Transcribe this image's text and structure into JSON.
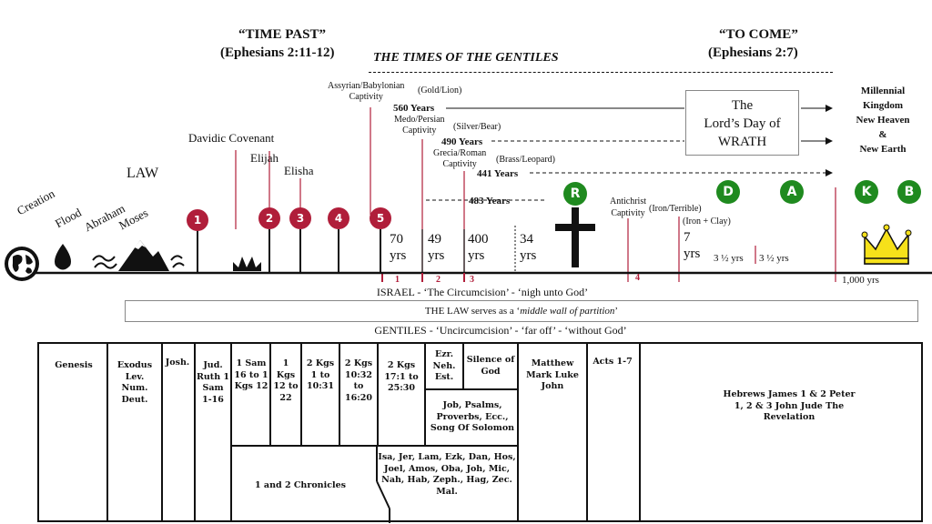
{
  "top": {
    "time_past": "“TIME PAST”",
    "time_past_ref": "(Ephesians 2:11-12)",
    "to_come": "“TO COME”",
    "to_come_ref": "(Ephesians 2:7)",
    "gentiles_times": "THE TIMES OF THE GENTILES"
  },
  "kingdom": [
    "Millennial",
    "Kingdom",
    "New Heaven",
    "&",
    "New Earth"
  ],
  "wrath": [
    "The",
    "Lord’s Day of",
    "WRATH"
  ],
  "captivities": {
    "assyrian": [
      "Assyrian/Babylonian",
      "Captivity"
    ],
    "gold": "(Gold/Lion)",
    "y560": "560 Years",
    "medo": [
      "Medo/Persian",
      "Captivity"
    ],
    "silver": "(Silver/Bear)",
    "y490": "490 Years",
    "grecia": [
      "Grecia/Roman",
      "Captivity"
    ],
    "brass": "(Brass/Leopard)",
    "y441": "441 Years",
    "y483": "483 Years",
    "antichrist": [
      "Antichrist",
      "Captivity"
    ],
    "iron": "(Iron/Terrible)",
    "iron_clay": "(Iron + Clay)"
  },
  "events": {
    "davidic": "Davidic Covenant",
    "elijah": "Elijah",
    "elisha": "Elisha",
    "law": "LAW",
    "creation": "Creation",
    "flood": "Flood",
    "abraham": "Abraham",
    "moses": "Moses"
  },
  "red_markers": [
    "1",
    "2",
    "3",
    "4",
    "5"
  ],
  "green_markers": [
    "R",
    "D",
    "A",
    "K",
    "B"
  ],
  "spans": {
    "s70": [
      "70",
      "yrs"
    ],
    "s49": [
      "49",
      "yrs"
    ],
    "s400": [
      "400",
      "yrs"
    ],
    "s34": [
      "34",
      "yrs"
    ],
    "s7": [
      "7",
      "yrs"
    ],
    "half1": "3 ½ yrs",
    "half2": "3 ½  yrs",
    "millennium": "1,000 yrs"
  },
  "axis_marks": [
    "1",
    "2",
    "3",
    "4"
  ],
  "bands": {
    "israel": "ISRAEL  -  ‘The Circumcision’  -  ‘nigh unto God’",
    "law_pre": "THE LAW serves as a ‘",
    "law_it": "middle wall of partition",
    "law_post": "’",
    "gentiles": "GENTILES  -  ‘Uncircumcision’  -  ‘far off’  -  ‘without God’"
  },
  "books": {
    "genesis": "Genesis",
    "exodus": "Exodus Lev. Num. Deut.",
    "josh": "Josh.",
    "jud": "Jud. Ruth 1 Sam 1-16",
    "sam": "1 Sam 16 to 1 Kgs 12",
    "kgs1": "1 Kgs 12 to 22",
    "kgs2a": "2 Kgs 1 to 10:31",
    "kgs2b": "2 Kgs 10:32 to 16:20",
    "kgs2c": "2 Kgs 17:1 to 25:30",
    "ezr": "Ezr. Neh. Est.",
    "silence": "Silence of God",
    "job": "Job, Psalms, Proverbs, Ecc., Song Of Solomon",
    "prophets": "Isa, Jer, Lam, Ezk, Dan,  Hos, Joel, Amos, Oba, Joh, Mic, Nah, Hab, Zeph., Hag, Zec. Mal.",
    "chronicles": "1 and 2 Chronicles",
    "gospels": "Matthew Mark Luke John",
    "acts": "Acts 1-7",
    "epistles": "Hebrews James 1 & 2 Peter 1, 2 & 3 John Jude The Revelation"
  }
}
